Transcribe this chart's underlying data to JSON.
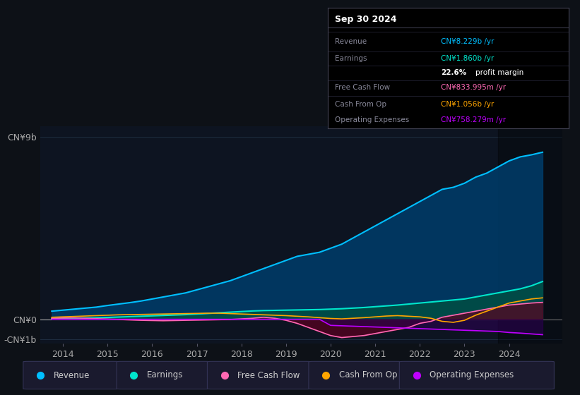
{
  "bg_color": "#0d1117",
  "plot_bg_color": "#0d1421",
  "grid_color": "#1e2d40",
  "title_box": {
    "date": "Sep 30 2024",
    "rows": [
      {
        "label": "Revenue",
        "value": "CN¥8.229b /yr",
        "value_color": "#00bfff"
      },
      {
        "label": "Earnings",
        "value": "CN¥1.860b /yr",
        "value_color": "#00e5cc"
      },
      {
        "label": "",
        "value": "22.6% profit margin",
        "value_color": "#ffffff"
      },
      {
        "label": "Free Cash Flow",
        "value": "CN¥833.995m /yr",
        "value_color": "#ff69b4"
      },
      {
        "label": "Cash From Op",
        "value": "CN¥1.056b /yr",
        "value_color": "#ffa500"
      },
      {
        "label": "Operating Expenses",
        "value": "CN¥758.279m /yr",
        "value_color": "#bf00ff"
      }
    ]
  },
  "ylim": [
    -1200000000.0,
    9500000000.0
  ],
  "yticks": [
    9000000000.0,
    0,
    -1000000000.0
  ],
  "ytick_labels": [
    "CN¥9b",
    "CN¥0",
    "-CN¥1b"
  ],
  "xlim": [
    2013.5,
    2025.2
  ],
  "xticks": [
    2014,
    2015,
    2016,
    2017,
    2018,
    2019,
    2020,
    2021,
    2022,
    2023,
    2024
  ],
  "years": [
    2013.75,
    2014.0,
    2014.25,
    2014.5,
    2014.75,
    2015.0,
    2015.25,
    2015.5,
    2015.75,
    2016.0,
    2016.25,
    2016.5,
    2016.75,
    2017.0,
    2017.25,
    2017.5,
    2017.75,
    2018.0,
    2018.25,
    2018.5,
    2018.75,
    2019.0,
    2019.25,
    2019.5,
    2019.75,
    2020.0,
    2020.25,
    2020.5,
    2020.75,
    2021.0,
    2021.25,
    2021.5,
    2021.75,
    2022.0,
    2022.25,
    2022.5,
    2022.75,
    2023.0,
    2023.25,
    2023.5,
    2023.75,
    2024.0,
    2024.25,
    2024.5,
    2024.75
  ],
  "revenue": [
    400000000.0,
    450000000.0,
    500000000.0,
    550000000.0,
    600000000.0,
    680000000.0,
    750000000.0,
    820000000.0,
    900000000.0,
    1000000000.0,
    1100000000.0,
    1200000000.0,
    1300000000.0,
    1450000000.0,
    1600000000.0,
    1750000000.0,
    1900000000.0,
    2100000000.0,
    2300000000.0,
    2500000000.0,
    2700000000.0,
    2900000000.0,
    3100000000.0,
    3200000000.0,
    3300000000.0,
    3500000000.0,
    3700000000.0,
    4000000000.0,
    4300000000.0,
    4600000000.0,
    4900000000.0,
    5200000000.0,
    5500000000.0,
    5800000000.0,
    6100000000.0,
    6400000000.0,
    6500000000.0,
    6700000000.0,
    7000000000.0,
    7200000000.0,
    7500000000.0,
    7800000000.0,
    8000000000.0,
    8100000000.0,
    8229000000.0
  ],
  "earnings": [
    30000000.0,
    40000000.0,
    50000000.0,
    60000000.0,
    70000000.0,
    90000000.0,
    110000000.0,
    130000000.0,
    150000000.0,
    170000000.0,
    190000000.0,
    210000000.0,
    230000000.0,
    260000000.0,
    290000000.0,
    320000000.0,
    350000000.0,
    380000000.0,
    410000000.0,
    430000000.0,
    440000000.0,
    450000000.0,
    460000000.0,
    470000000.0,
    480000000.0,
    500000000.0,
    520000000.0,
    550000000.0,
    580000000.0,
    620000000.0,
    660000000.0,
    700000000.0,
    750000000.0,
    800000000.0,
    850000000.0,
    900000000.0,
    950000000.0,
    1000000000.0,
    1100000000.0,
    1200000000.0,
    1300000000.0,
    1400000000.0,
    1500000000.0,
    1650000000.0,
    1860000000.0
  ],
  "free_cash_flow": [
    50000000.0,
    60000000.0,
    70000000.0,
    50000000.0,
    30000000.0,
    10000000.0,
    -10000000.0,
    -30000000.0,
    -50000000.0,
    -60000000.0,
    -70000000.0,
    -60000000.0,
    -50000000.0,
    -40000000.0,
    -30000000.0,
    -20000000.0,
    -10000000.0,
    20000000.0,
    50000000.0,
    100000000.0,
    50000000.0,
    -50000000.0,
    -200000000.0,
    -400000000.0,
    -600000000.0,
    -800000000.0,
    -900000000.0,
    -850000000.0,
    -800000000.0,
    -700000000.0,
    -600000000.0,
    -500000000.0,
    -400000000.0,
    -200000000.0,
    -100000000.0,
    100000000.0,
    200000000.0,
    300000000.0,
    400000000.0,
    500000000.0,
    600000000.0,
    700000000.0,
    750000000.0,
    800000000.0,
    834000000.0
  ],
  "cash_from_op": [
    100000000.0,
    120000000.0,
    140000000.0,
    160000000.0,
    180000000.0,
    200000000.0,
    220000000.0,
    230000000.0,
    240000000.0,
    250000000.0,
    260000000.0,
    270000000.0,
    280000000.0,
    290000000.0,
    300000000.0,
    300000000.0,
    280000000.0,
    260000000.0,
    240000000.0,
    220000000.0,
    200000000.0,
    180000000.0,
    150000000.0,
    120000000.0,
    80000000.0,
    40000000.0,
    20000000.0,
    50000000.0,
    80000000.0,
    120000000.0,
    160000000.0,
    180000000.0,
    150000000.0,
    120000000.0,
    50000000.0,
    -100000000.0,
    -150000000.0,
    -50000000.0,
    200000000.0,
    400000000.0,
    600000000.0,
    800000000.0,
    900000000.0,
    1000000000.0,
    1056000000.0
  ],
  "operating_expenses": [
    0,
    0,
    0,
    0,
    0,
    0,
    0,
    0,
    0,
    0,
    0,
    0,
    0,
    0,
    0,
    0,
    0,
    0,
    0,
    0,
    0,
    0,
    0,
    0,
    0,
    -300000000.0,
    -320000000.0,
    -340000000.0,
    -360000000.0,
    -380000000.0,
    -400000000.0,
    -420000000.0,
    -440000000.0,
    -460000000.0,
    -480000000.0,
    -500000000.0,
    -520000000.0,
    -540000000.0,
    -560000000.0,
    -580000000.0,
    -600000000.0,
    -650000000.0,
    -680000000.0,
    -720000000.0,
    -758000000.0
  ],
  "revenue_color": "#00bfff",
  "revenue_fill": "#003d6b",
  "earnings_color": "#00e5cc",
  "earnings_fill": "#004d45",
  "fcf_color": "#ff69b4",
  "fcf_fill": "#5c0020",
  "cashop_color": "#ffa500",
  "opex_color": "#bf00ff",
  "opex_fill": "#2a0050",
  "legend_bg": "#1a1a2e",
  "legend_border": "#333355"
}
